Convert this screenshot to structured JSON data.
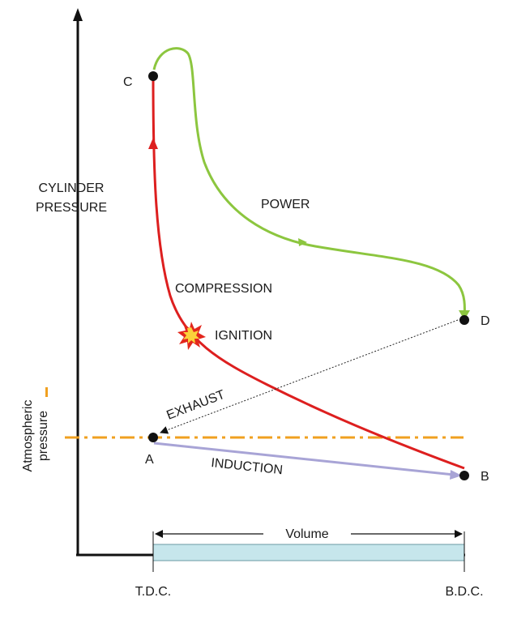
{
  "labels": {
    "y_axis_line1": "CYLINDER",
    "y_axis_line2": "PRESSURE",
    "power": "POWER",
    "compression": "COMPRESSION",
    "ignition": "IGNITION",
    "exhaust": "EXHAUST",
    "induction": "INDUCTION",
    "atmospheric_line1": "Atmospheric",
    "atmospheric_line2": "pressure",
    "volume": "Volume",
    "tdc": "T.D.C.",
    "bdc": "B.D.C."
  },
  "points": {
    "a": "A",
    "b": "B",
    "c": "C",
    "d": "D"
  },
  "colors": {
    "compression_curve": "#dd1f1f",
    "power_curve": "#8cc63f",
    "induction_line": "#a8a4d6",
    "atmospheric_line": "#f0a020",
    "axis": "#111111",
    "cylinder_bar": "#c6e6ec"
  },
  "icons": {
    "ignition": "explosion-icon"
  }
}
